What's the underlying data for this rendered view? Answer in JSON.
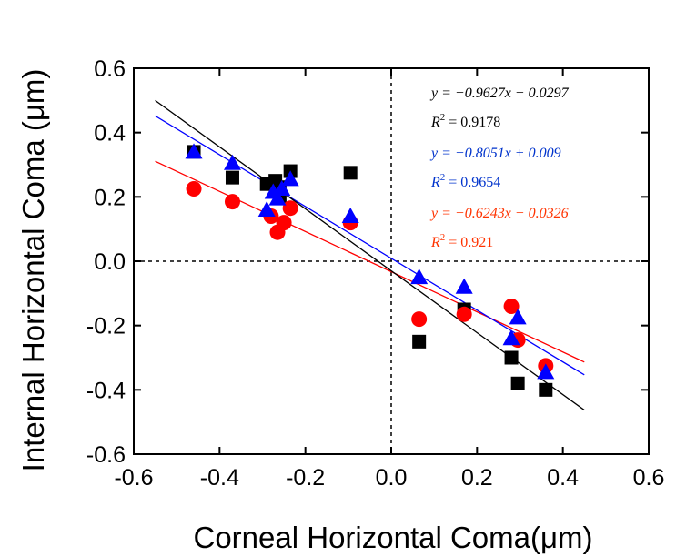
{
  "chart_data": {
    "type": "scatter",
    "xlabel": "Corneal Horizontal Coma(μm)",
    "ylabel": "Internal Horizontal Coma (μm)",
    "xlim": [
      -0.6,
      0.6
    ],
    "ylim": [
      -0.6,
      0.6
    ],
    "x_ticks": [
      "-0.6",
      "-0.4",
      "-0.2",
      "0.0",
      "0.2",
      "0.4",
      "0.6"
    ],
    "y_ticks": [
      "0.6",
      "0.4",
      "0.2",
      "0.0",
      "-0.2",
      "-0.4",
      "-0.6"
    ],
    "x_tick_values": [
      -0.6,
      -0.4,
      -0.2,
      0.0,
      0.2,
      0.4,
      0.6
    ],
    "y_tick_values": [
      0.6,
      0.4,
      0.2,
      0.0,
      -0.2,
      -0.4,
      -0.6
    ],
    "reference_lines": {
      "x": 0,
      "y": 0,
      "style": "dashed"
    },
    "series": [
      {
        "marker": "square",
        "color": "#000000",
        "points": [
          [
            -0.46,
            0.34
          ],
          [
            -0.37,
            0.26
          ],
          [
            -0.29,
            0.24
          ],
          [
            -0.27,
            0.25
          ],
          [
            -0.26,
            0.23
          ],
          [
            -0.26,
            0.2
          ],
          [
            -0.235,
            0.28
          ],
          [
            -0.095,
            0.275
          ],
          [
            0.065,
            -0.25
          ],
          [
            0.17,
            -0.15
          ],
          [
            0.28,
            -0.3
          ],
          [
            0.295,
            -0.38
          ],
          [
            0.36,
            -0.4
          ]
        ],
        "fit": {
          "slope": -0.9627,
          "intercept": -0.0297,
          "x_range": [
            -0.55,
            0.45
          ]
        }
      },
      {
        "marker": "circle",
        "color": "#ff0000",
        "points": [
          [
            -0.46,
            0.225
          ],
          [
            -0.37,
            0.185
          ],
          [
            -0.28,
            0.14
          ],
          [
            -0.265,
            0.09
          ],
          [
            -0.25,
            0.12
          ],
          [
            -0.235,
            0.165
          ],
          [
            -0.095,
            0.12
          ],
          [
            0.065,
            -0.18
          ],
          [
            0.17,
            -0.165
          ],
          [
            0.28,
            -0.14
          ],
          [
            0.295,
            -0.245
          ],
          [
            0.36,
            -0.325
          ]
        ],
        "fit": {
          "slope": -0.6243,
          "intercept": -0.0326,
          "x_range": [
            -0.55,
            0.45
          ]
        }
      },
      {
        "marker": "triangle",
        "color": "#0000ff",
        "points": [
          [
            -0.46,
            0.34
          ],
          [
            -0.37,
            0.305
          ],
          [
            -0.29,
            0.16
          ],
          [
            -0.275,
            0.215
          ],
          [
            -0.265,
            0.195
          ],
          [
            -0.255,
            0.225
          ],
          [
            -0.235,
            0.255
          ],
          [
            -0.095,
            0.14
          ],
          [
            0.065,
            -0.05
          ],
          [
            0.17,
            -0.08
          ],
          [
            0.28,
            -0.24
          ],
          [
            0.295,
            -0.175
          ],
          [
            0.36,
            -0.345
          ]
        ],
        "fit": {
          "slope": -0.8051,
          "intercept": 0.009,
          "x_range": [
            -0.55,
            0.45
          ]
        }
      }
    ],
    "annotations": [
      {
        "eq": "y = −0.9627x − 0.0297",
        "r2": "0.9178",
        "color": "#000000"
      },
      {
        "eq": "y = −0.8051x + 0.009",
        "r2": "0.9654",
        "color": "#0033cc"
      },
      {
        "eq": "y = −0.6243x − 0.0326",
        "r2": "0.921",
        "color": "#ff3300"
      }
    ]
  }
}
